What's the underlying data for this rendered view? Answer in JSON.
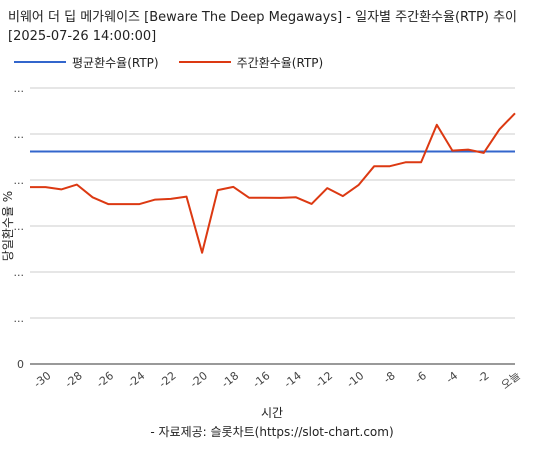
{
  "title": "비웨어 더 딥 메가웨이즈 [Beware The Deep Megaways] - 일자별 주간환수율(RTP) 추이 [2025-07-26 14:00:00]",
  "footer": {
    "xlabel": "시간",
    "source": "- 자료제공: 슬롯차트(https://slot-chart.com)"
  },
  "colors": {
    "avg": "#3366cc",
    "weekly": "#dc3912",
    "grid": "#cccccc",
    "axis": "#333333"
  },
  "chart_data": {
    "type": "line",
    "title": "비웨어 더 딥 메가웨이즈 [Beware The Deep Megaways] - 일자별 주간환수율(RTP) 추이 [2025-07-26 14:00:00]",
    "xlabel": "시간",
    "ylabel": "당일환수율 %",
    "x": [
      -31,
      -30,
      -29,
      -28,
      -27,
      -26,
      -25,
      -24,
      -23,
      -22,
      -21,
      -20,
      -19,
      -18,
      -17,
      -16,
      -15,
      -14,
      -13,
      -12,
      -11,
      -10,
      -9,
      -8,
      -7,
      -6,
      -5,
      -4,
      -3,
      -2,
      -1,
      0
    ],
    "x_tick_values": [
      -30,
      -28,
      -26,
      -24,
      -22,
      -20,
      -18,
      -16,
      -14,
      -12,
      -10,
      -8,
      -6,
      -4,
      -2,
      0
    ],
    "x_tick_labels": [
      "-30",
      "-28",
      "-26",
      "-24",
      "-22",
      "-20",
      "-18",
      "-16",
      "-14",
      "-12",
      "-10",
      "-8",
      "-6",
      "-4",
      "-2",
      "오늘"
    ],
    "y_tick_labels": [
      "0",
      "...",
      "...",
      "...",
      "...",
      "...",
      "..."
    ],
    "series": [
      {
        "name": "평균환수율(RTP)",
        "color": "#3366cc",
        "values": [
          92.4,
          92.4,
          92.4,
          92.4,
          92.4,
          92.4,
          92.4,
          92.4,
          92.4,
          92.4,
          92.4,
          92.4,
          92.4,
          92.4,
          92.4,
          92.4,
          92.4,
          92.4,
          92.4,
          92.4,
          92.4,
          92.4,
          92.4,
          92.4,
          92.4,
          92.4,
          92.4,
          92.4,
          92.4,
          92.4,
          92.4,
          92.4
        ]
      },
      {
        "name": "주간환수율(RTP)",
        "color": "#dc3912",
        "values": [
          76.9,
          76.9,
          75.9,
          78.0,
          72.5,
          69.5,
          69.5,
          69.5,
          71.5,
          71.8,
          72.8,
          48.4,
          75.6,
          77.0,
          72.3,
          72.3,
          72.2,
          72.5,
          69.6,
          76.5,
          73.0,
          77.8,
          86.0,
          86.0,
          87.7,
          87.7,
          104.0,
          92.8,
          93.2,
          91.8,
          102.0,
          109.0
        ]
      }
    ],
    "ylim": [
      0,
      120
    ],
    "grid": true,
    "legend": "top-left"
  }
}
